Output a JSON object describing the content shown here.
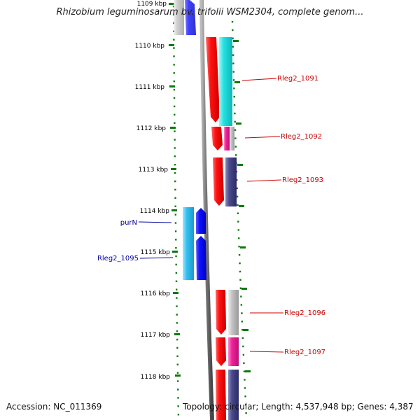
{
  "title": "Rhizobium leguminosarum bv. trifolii WSM2304, complete genom...",
  "footer": {
    "accession": "Accession: NC_011369",
    "summary": "Topology: circular; Length: 4,537,948 bp; Genes: 4,387"
  },
  "ticks": [
    {
      "label": "1109 kbp",
      "kbp": 1109
    },
    {
      "label": "1110 kbp",
      "kbp": 1110
    },
    {
      "label": "1111 kbp",
      "kbp": 1111
    },
    {
      "label": "1112 kbp",
      "kbp": 1112
    },
    {
      "label": "1113 kbp",
      "kbp": 1113
    },
    {
      "label": "1114 kbp",
      "kbp": 1114
    },
    {
      "label": "1115 kbp",
      "kbp": 1115
    },
    {
      "label": "1116 kbp",
      "kbp": 1116
    },
    {
      "label": "1117 kbp",
      "kbp": 1117
    },
    {
      "label": "1118 kbp",
      "kbp": 1118
    }
  ],
  "gene_labels": [
    {
      "name": "Rleg2_1091",
      "strand": "forward",
      "color": "#cc0000"
    },
    {
      "name": "Rleg2_1092",
      "strand": "forward",
      "color": "#cc0000"
    },
    {
      "name": "Rleg2_1093",
      "strand": "forward",
      "color": "#cc0000"
    },
    {
      "name": "purN",
      "strand": "reverse",
      "color": "#000099"
    },
    {
      "name": "Rleg2_1095",
      "strand": "reverse",
      "color": "#000099"
    },
    {
      "name": "Rleg2_1096",
      "strand": "forward",
      "color": "#cc0000"
    },
    {
      "name": "Rleg2_1097",
      "strand": "forward",
      "color": "#cc0000"
    }
  ],
  "colors": {
    "forward_cds": "#ee0000",
    "reverse_cds": "#0000ee",
    "cog_cyan": "#22dddd",
    "cog_lightblue": "#33bbee",
    "cog_navy": "#444488",
    "cog_magenta": "#ee2299",
    "cog_grey": "#bbbbbb",
    "backbone": "#777777",
    "tick_marks": "#006600"
  }
}
